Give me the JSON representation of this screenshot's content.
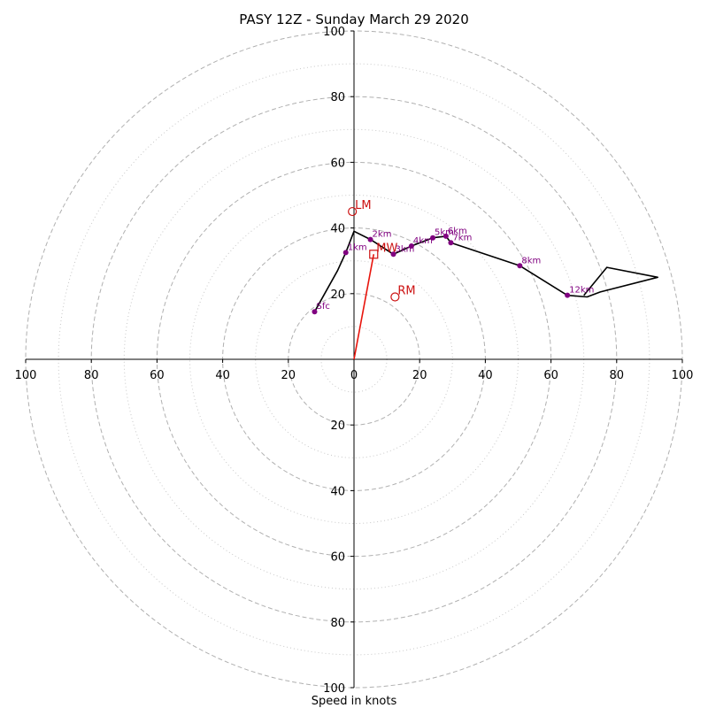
{
  "chart_data": {
    "type": "line",
    "title": "PASY 12Z - Sunday March 29 2020",
    "xlabel": "Speed in knots",
    "ylabel": "",
    "xlim": [
      -100,
      100
    ],
    "ylim": [
      -100,
      100
    ],
    "x_ticks": [
      "100",
      "80",
      "60",
      "40",
      "20",
      "0",
      "20",
      "40",
      "60",
      "80",
      "100"
    ],
    "y_tick_labels_up": [
      "20",
      "40",
      "60",
      "80",
      "100"
    ],
    "y_tick_labels_down": [
      "20",
      "40",
      "60",
      "80",
      "100"
    ],
    "ring_values_major": [
      20,
      40,
      60,
      80,
      100
    ],
    "ring_values_minor": [
      10,
      30,
      50,
      70,
      90
    ],
    "grid": true,
    "hodograph": {
      "x": [
        -12,
        -5,
        -2.5,
        0,
        5,
        12,
        17.5,
        24,
        28,
        29.5,
        50.5,
        65,
        71,
        75,
        92.5,
        77,
        70
      ],
      "y": [
        14.5,
        27,
        32.5,
        39,
        36.5,
        32,
        34.5,
        37,
        37.5,
        35.5,
        28.5,
        19.5,
        19,
        20.5,
        25,
        28,
        19.5
      ],
      "color": "#000000"
    },
    "height_markers": [
      {
        "label": "Sfc",
        "x": -12,
        "y": 14.5
      },
      {
        "label": "1km",
        "x": -2.5,
        "y": 32.5
      },
      {
        "label": "2km",
        "x": 5,
        "y": 36.5
      },
      {
        "label": "3km",
        "x": 12,
        "y": 32
      },
      {
        "label": "4km",
        "x": 17.5,
        "y": 34.5
      },
      {
        "label": "5km",
        "x": 24,
        "y": 37
      },
      {
        "label": "6km",
        "x": 28,
        "y": 37.5
      },
      {
        "label": "7km",
        "x": 29.5,
        "y": 35.5
      },
      {
        "label": "8km",
        "x": 50.5,
        "y": 28.5
      },
      {
        "label": "12km",
        "x": 65,
        "y": 19.5
      }
    ],
    "storm_motion": [
      {
        "label": "LM",
        "x": -0.5,
        "y": 45,
        "marker": "circle"
      },
      {
        "label": "RM",
        "x": 12.5,
        "y": 19,
        "marker": "circle"
      },
      {
        "label": "MW",
        "x": 6,
        "y": 32,
        "marker": "square"
      }
    ],
    "mean_wind_vector": {
      "x": 6,
      "y": 32,
      "color": "#e8140c"
    },
    "colors": {
      "hodograph": "#000000",
      "markers": "#800080",
      "storm": "#cc1111",
      "grid": "#b0b0b0"
    }
  }
}
